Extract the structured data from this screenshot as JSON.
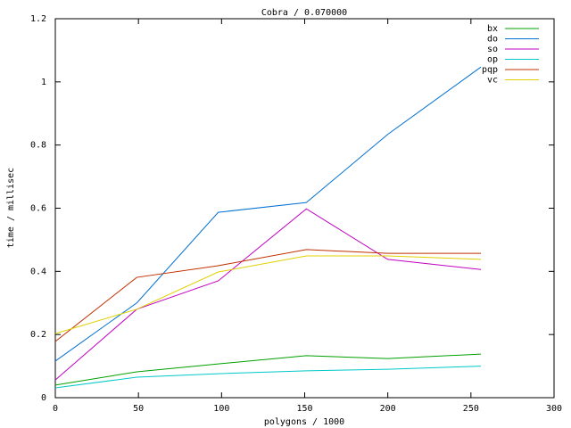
{
  "chart_data": {
    "type": "line",
    "title": "Cobra / 0.070000",
    "x_label": "polygons / 1000",
    "y_label": "time / millisec",
    "x": [
      0,
      49,
      98,
      151,
      200,
      256
    ],
    "series": [
      {
        "name": "bx",
        "color": "#00a000",
        "values": [
          0.04,
          0.082,
          0.107,
          0.133,
          0.124,
          0.138
        ]
      },
      {
        "name": "do",
        "color": "#0070d0",
        "values": [
          0.116,
          0.3,
          0.587,
          0.618,
          0.834,
          1.047
        ]
      },
      {
        "name": "so",
        "color": "#c000c0",
        "values": [
          0.056,
          0.28,
          0.37,
          0.598,
          0.438,
          0.406
        ]
      },
      {
        "name": "op",
        "color": "#00c8c8",
        "values": [
          0.031,
          0.065,
          0.076,
          0.085,
          0.09,
          0.1
        ]
      },
      {
        "name": "pqp",
        "color": "#c03000",
        "values": [
          0.178,
          0.381,
          0.418,
          0.469,
          0.457,
          0.457
        ]
      },
      {
        "name": "vc",
        "color": "#e0d000",
        "values": [
          0.203,
          0.28,
          0.398,
          0.449,
          0.449,
          0.438
        ]
      }
    ],
    "xlim": [
      0,
      300
    ],
    "xticks": [
      0,
      50,
      100,
      150,
      200,
      250,
      300
    ],
    "ylim": [
      0,
      1.2
    ],
    "yticks": [
      0,
      0.2,
      0.4,
      0.6,
      0.8,
      1,
      1.2
    ],
    "legend": "top-right",
    "grid": false
  }
}
